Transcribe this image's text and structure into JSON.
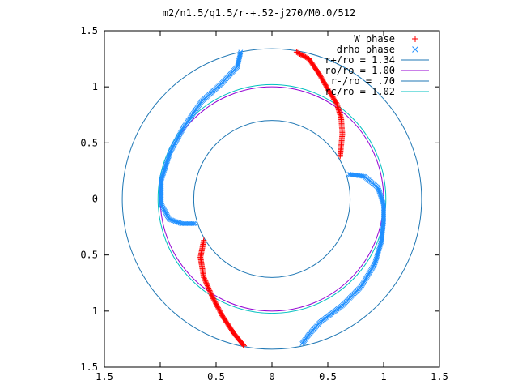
{
  "chart_data": {
    "type": "scatter",
    "title": "m2/n1.5/q1.5/r-+.52-j270/M0.0/512",
    "xlabel": "",
    "ylabel": "",
    "xlim": [
      -1.5,
      1.5
    ],
    "ylim": [
      -1.5,
      1.5
    ],
    "x_tick_values": [
      -1.5,
      -1,
      -0.5,
      0,
      0.5,
      1,
      1.5
    ],
    "x_tick_labels": [
      "1.5",
      "1",
      "0.5",
      "0",
      "0.5",
      "1",
      "1.5"
    ],
    "y_tick_values": [
      1.5,
      1,
      0.5,
      0,
      -0.5,
      -1,
      -1.5
    ],
    "y_tick_labels": [
      "1.5",
      "1",
      "0.5",
      "0",
      "0.5",
      "1",
      "1.5"
    ],
    "grid": false,
    "legend_position": "top-right",
    "circles": [
      {
        "name": "r+/ro = 1.34",
        "radius": 1.34,
        "color": "#1f77b4"
      },
      {
        "name": "ro/ro = 1.00",
        "radius": 1.0,
        "color": "#9400d3"
      },
      {
        "name": "r-/ro = .70",
        "radius": 0.7,
        "color": "#1f77b4"
      },
      {
        "name": "rc/ro = 1.02",
        "radius": 1.02,
        "color": "#00c0c0"
      }
    ],
    "series": [
      {
        "name": "W phase",
        "marker": "+",
        "color": "#ff0000",
        "arms": [
          [
            [
              0.22,
              1.31
            ],
            [
              0.33,
              1.25
            ],
            [
              0.42,
              1.12
            ],
            [
              0.5,
              0.98
            ],
            [
              0.58,
              0.85
            ],
            [
              0.62,
              0.72
            ],
            [
              0.63,
              0.58
            ],
            [
              0.61,
              0.38
            ]
          ],
          [
            [
              -0.61,
              -0.37
            ],
            [
              -0.64,
              -0.52
            ],
            [
              -0.61,
              -0.7
            ],
            [
              -0.53,
              -0.88
            ],
            [
              -0.44,
              -1.05
            ],
            [
              -0.34,
              -1.2
            ],
            [
              -0.25,
              -1.31
            ]
          ]
        ]
      },
      {
        "name": "drho phase",
        "marker": "x",
        "color": "#1f8fff",
        "arms": [
          [
            [
              -0.28,
              1.31
            ],
            [
              -0.31,
              1.18
            ],
            [
              -0.45,
              1.03
            ],
            [
              -0.63,
              0.87
            ],
            [
              -0.79,
              0.64
            ],
            [
              -0.91,
              0.42
            ],
            [
              -0.99,
              0.17
            ],
            [
              -0.99,
              -0.05
            ],
            [
              -0.92,
              -0.18
            ],
            [
              -0.81,
              -0.22
            ],
            [
              -0.69,
              -0.22
            ]
          ],
          [
            [
              0.69,
              0.22
            ],
            [
              0.83,
              0.2
            ],
            [
              0.95,
              0.1
            ],
            [
              1.0,
              -0.05
            ],
            [
              1.0,
              -0.2
            ],
            [
              0.98,
              -0.38
            ],
            [
              0.92,
              -0.58
            ],
            [
              0.8,
              -0.78
            ],
            [
              0.63,
              -0.95
            ],
            [
              0.43,
              -1.1
            ],
            [
              0.33,
              -1.21
            ],
            [
              0.27,
              -1.29
            ]
          ]
        ]
      }
    ]
  }
}
